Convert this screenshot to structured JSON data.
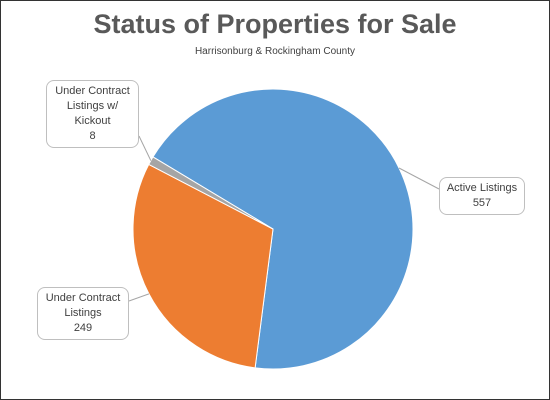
{
  "chart_data": {
    "type": "pie",
    "title": "Status of Properties for Sale",
    "subtitle": "Harrisonburg & Rockingham County",
    "categories": [
      "Active Listings",
      "Under Contract Listings",
      "Under Contract Listings w/ Kickout"
    ],
    "values": [
      557,
      249,
      8
    ],
    "colors": [
      "#5b9bd5",
      "#ed7d31",
      "#a5a5a5"
    ]
  }
}
